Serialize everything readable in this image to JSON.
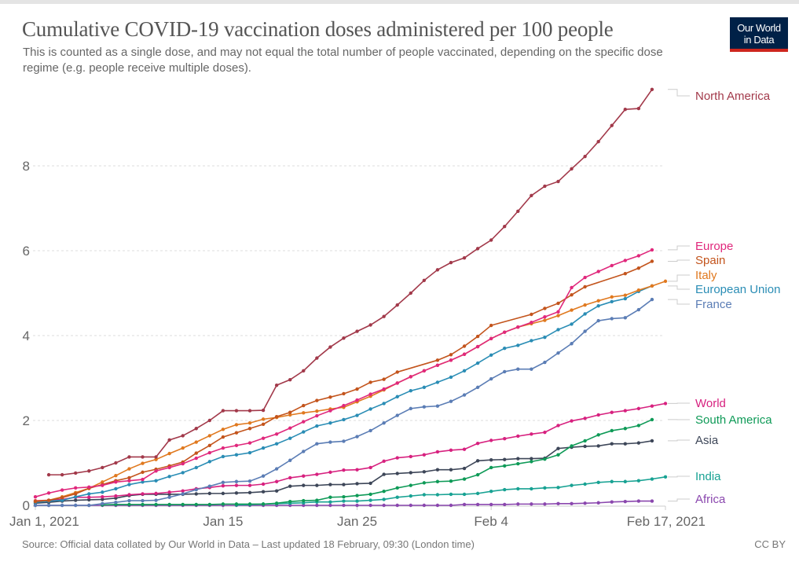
{
  "header": {
    "title": "Cumulative COVID-19 vaccination doses administered per 100 people",
    "subtitle": "This is counted as a single dose, and may not equal the total number of people vaccinated, depending on the specific dose regime (e.g. people receive multiple doses).",
    "logo_line1": "Our World",
    "logo_line2": "in Data"
  },
  "footer": {
    "source": "Source: Official data collated by Our World in Data – Last updated 18 February, 09:30 (London time)",
    "license": "CC BY"
  },
  "chart_data": {
    "type": "line",
    "title": "Cumulative COVID-19 vaccination doses administered per 100 people",
    "xlabel": "",
    "ylabel": "",
    "x_start": "Jan 1, 2021",
    "x_end": "Feb 17, 2021",
    "x_day_count": 48,
    "x_ticks": [
      {
        "day": 0,
        "label": "Jan 1, 2021"
      },
      {
        "day": 14,
        "label": "Jan 15"
      },
      {
        "day": 24,
        "label": "Jan 25"
      },
      {
        "day": 34,
        "label": "Feb 4"
      },
      {
        "day": 47,
        "label": "Feb 17, 2021"
      }
    ],
    "y_ticks": [
      0,
      2,
      4,
      6,
      8
    ],
    "y_tick_labels": [
      "0",
      "2",
      "4",
      "6",
      "8"
    ],
    "ylim": [
      0,
      10
    ],
    "grid": true,
    "legend": "right (end labels)",
    "series": [
      {
        "name": "North America",
        "color": "#a2394a",
        "values": [
          null,
          0.72,
          0.72,
          0.76,
          0.81,
          0.89,
          1.0,
          1.14,
          1.14,
          1.14,
          1.54,
          1.64,
          1.81,
          2.0,
          2.23,
          2.23,
          2.23,
          2.24,
          2.83,
          2.96,
          3.17,
          3.47,
          3.73,
          3.94,
          4.1,
          4.25,
          4.45,
          4.72,
          5.0,
          5.3,
          5.55,
          5.72,
          5.83,
          6.05,
          6.25,
          6.57,
          6.93,
          7.3,
          7.52,
          7.63,
          7.93,
          8.22,
          8.57,
          8.95,
          9.33,
          9.35,
          9.8,
          null
        ]
      },
      {
        "name": "Europe",
        "color": "#e0287c",
        "values": [
          0.2,
          0.29,
          0.36,
          0.41,
          0.43,
          0.47,
          0.55,
          0.58,
          0.61,
          0.81,
          0.89,
          0.98,
          1.11,
          1.24,
          1.35,
          1.41,
          1.47,
          1.58,
          1.68,
          1.82,
          1.97,
          2.11,
          2.23,
          2.35,
          2.48,
          2.62,
          2.74,
          2.88,
          3.03,
          3.17,
          3.3,
          3.42,
          3.56,
          3.74,
          3.93,
          4.08,
          4.2,
          4.31,
          4.44,
          4.56,
          5.13,
          5.37,
          5.51,
          5.65,
          5.77,
          5.88,
          6.02,
          null
        ]
      },
      {
        "name": "Spain",
        "color": "#c3541c",
        "values": [
          0.09,
          0.12,
          0.18,
          0.27,
          0.4,
          0.49,
          0.58,
          0.65,
          0.78,
          0.85,
          0.93,
          1.02,
          1.23,
          1.41,
          1.61,
          1.71,
          1.81,
          1.91,
          2.09,
          2.19,
          2.35,
          2.47,
          2.55,
          2.63,
          2.74,
          2.9,
          2.97,
          3.14,
          null,
          null,
          3.42,
          3.55,
          3.75,
          3.98,
          4.24,
          null,
          null,
          4.5,
          4.64,
          4.76,
          4.96,
          5.15,
          null,
          null,
          5.46,
          5.59,
          5.75,
          null
        ]
      },
      {
        "name": "Italy",
        "color": "#e0791f",
        "values": [
          0.1,
          0.12,
          0.2,
          0.3,
          0.4,
          0.55,
          0.7,
          0.86,
          0.99,
          1.08,
          1.22,
          1.35,
          1.49,
          1.64,
          1.79,
          1.9,
          1.94,
          2.03,
          2.07,
          2.13,
          2.18,
          2.22,
          2.27,
          2.31,
          2.44,
          2.57,
          2.72,
          2.88,
          3.03,
          3.17,
          3.3,
          3.42,
          3.56,
          3.74,
          3.93,
          4.08,
          4.2,
          4.28,
          4.36,
          4.47,
          4.6,
          4.72,
          4.82,
          4.91,
          4.95,
          5.07,
          5.17,
          5.28
        ]
      },
      {
        "name": "European Union",
        "color": "#2a8db5",
        "values": [
          0.07,
          0.1,
          0.12,
          0.2,
          0.27,
          0.31,
          0.39,
          0.49,
          0.55,
          0.58,
          0.68,
          0.77,
          0.89,
          1.03,
          1.15,
          1.19,
          1.24,
          1.35,
          1.45,
          1.58,
          1.73,
          1.87,
          1.94,
          2.02,
          2.12,
          2.27,
          2.4,
          2.56,
          2.7,
          2.78,
          2.9,
          3.02,
          3.17,
          3.35,
          3.54,
          3.7,
          3.77,
          3.88,
          3.96,
          4.14,
          4.27,
          4.51,
          4.7,
          4.8,
          4.87,
          5.04,
          5.17,
          null
        ]
      },
      {
        "name": "France",
        "color": "#5b7db5",
        "values": [
          0,
          0,
          0,
          0,
          0,
          0.04,
          0.07,
          0.11,
          0.11,
          0.12,
          0.19,
          0.27,
          0.37,
          0.45,
          0.54,
          0.56,
          0.57,
          0.69,
          0.86,
          1.06,
          1.27,
          1.45,
          1.49,
          1.51,
          1.62,
          1.76,
          1.94,
          2.12,
          2.28,
          2.32,
          2.34,
          2.45,
          2.6,
          2.78,
          2.98,
          3.15,
          3.21,
          3.21,
          3.37,
          3.59,
          3.81,
          4.1,
          4.35,
          4.4,
          4.42,
          4.61,
          4.85,
          null
        ]
      },
      {
        "name": "World",
        "color": "#d7217f",
        "values": [
          0.11,
          0.12,
          0.14,
          0.19,
          0.19,
          0.2,
          0.22,
          0.25,
          0.27,
          0.28,
          0.31,
          0.34,
          0.39,
          0.42,
          0.46,
          0.47,
          0.47,
          0.5,
          0.56,
          0.65,
          0.69,
          0.73,
          0.78,
          0.83,
          0.84,
          0.89,
          1.04,
          1.12,
          1.15,
          1.19,
          1.26,
          1.3,
          1.32,
          1.46,
          1.53,
          1.57,
          1.63,
          1.68,
          1.72,
          1.88,
          1.99,
          2.05,
          2.13,
          2.19,
          2.23,
          2.28,
          2.34,
          2.4
        ]
      },
      {
        "name": "South America",
        "color": "#0e9a57",
        "values": [
          null,
          null,
          null,
          null,
          null,
          0.01,
          0.02,
          0.02,
          0.02,
          0.02,
          0.02,
          0.02,
          0.02,
          0.02,
          0.03,
          0.03,
          0.03,
          0.03,
          0.05,
          0.09,
          0.11,
          0.12,
          0.19,
          0.2,
          0.23,
          0.26,
          0.33,
          0.41,
          0.47,
          0.53,
          0.56,
          0.57,
          0.62,
          0.72,
          0.89,
          0.93,
          0.98,
          1.03,
          1.09,
          1.19,
          1.4,
          1.52,
          1.66,
          1.76,
          1.81,
          1.88,
          2.02,
          null
        ]
      },
      {
        "name": "Asia",
        "color": "#3d4658",
        "values": [
          0.05,
          0.07,
          0.1,
          0.12,
          0.13,
          0.14,
          0.17,
          0.23,
          0.26,
          0.26,
          0.26,
          0.26,
          0.27,
          0.28,
          0.28,
          0.29,
          0.3,
          0.32,
          0.34,
          0.45,
          0.47,
          0.47,
          0.49,
          0.49,
          0.51,
          0.52,
          0.73,
          0.75,
          0.77,
          0.79,
          0.84,
          0.84,
          0.87,
          1.05,
          1.07,
          1.08,
          1.1,
          1.1,
          1.11,
          1.34,
          1.37,
          1.39,
          1.4,
          1.45,
          1.45,
          1.47,
          1.52,
          null
        ]
      },
      {
        "name": "India",
        "color": "#18a293",
        "values": [
          null,
          null,
          null,
          null,
          null,
          null,
          null,
          null,
          null,
          null,
          null,
          null,
          null,
          null,
          null,
          0.01,
          0.02,
          0.03,
          0.04,
          0.05,
          0.06,
          0.08,
          0.08,
          0.1,
          0.1,
          0.12,
          0.14,
          0.19,
          0.22,
          0.25,
          0.25,
          0.26,
          0.26,
          0.28,
          0.33,
          0.37,
          0.39,
          0.39,
          0.41,
          0.42,
          0.47,
          0.5,
          0.54,
          0.56,
          0.56,
          0.58,
          0.62,
          0.67
        ]
      },
      {
        "name": "Africa",
        "color": "#8a47ae",
        "values": [
          0,
          0,
          0,
          0,
          0,
          0,
          0,
          0,
          0,
          0,
          0,
          0,
          0,
          0,
          0,
          0,
          0,
          0,
          0,
          0,
          0,
          0,
          0,
          0,
          0,
          0,
          0,
          0,
          0,
          0,
          0,
          0,
          0.02,
          0.02,
          0.02,
          0.02,
          0.03,
          0.03,
          0.03,
          0.04,
          0.04,
          0.05,
          0.06,
          0.08,
          0.09,
          0.1,
          0.1,
          null
        ]
      }
    ]
  }
}
